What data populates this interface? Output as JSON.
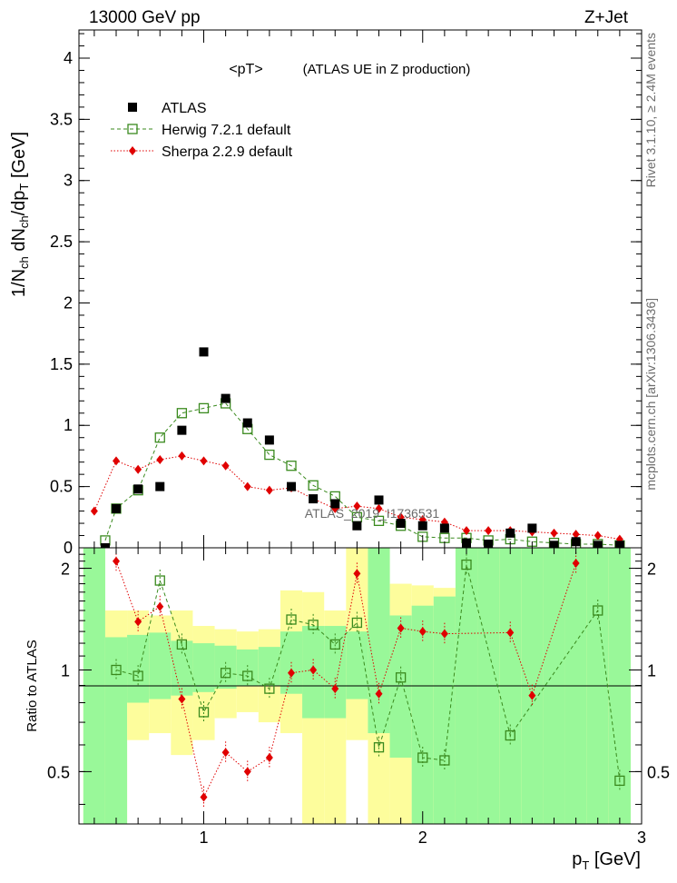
{
  "header": {
    "left": "13000 GeV pp",
    "right": "Z+Jet",
    "plot_title": "<pT>",
    "plot_subtitle": "(ATLAS UE in Z production)"
  },
  "side_labels": {
    "rivet": "Rivet 3.1.10, ≥ 2.4M events",
    "mcplots": "mcplots.cern.ch [arXiv:1306.3436]"
  },
  "watermark": "ATLAS_2019_I1736531",
  "colors": {
    "atlas": "#000000",
    "herwig": "#3a8a1e",
    "sherpa": "#e00000",
    "band_inner": "#99f899",
    "band_outer": "#fdfd9c"
  },
  "chart_data": [
    {
      "type": "scatter",
      "panel": "main",
      "xlim": [
        0.43,
        3.0
      ],
      "ylim": [
        0,
        4.23
      ],
      "ylabel": "1/N_ch dN_ch/dp_T [GeV]",
      "yticks": [
        0,
        0.5,
        1,
        1.5,
        2,
        2.5,
        3,
        3.5,
        4
      ],
      "grid": false,
      "legend_position": "top-left",
      "series": [
        {
          "name": "ATLAS",
          "style": "black filled squares",
          "x": [
            0.55,
            0.6,
            0.7,
            0.8,
            0.9,
            1.0,
            1.1,
            1.2,
            1.3,
            1.4,
            1.5,
            1.6,
            1.7,
            1.8,
            1.9,
            2.0,
            2.1,
            2.2,
            2.3,
            2.4,
            2.5,
            2.6,
            2.7,
            2.8,
            2.9
          ],
          "y": [
            0.0,
            0.32,
            0.48,
            0.5,
            0.96,
            1.6,
            1.22,
            1.02,
            0.88,
            0.5,
            0.4,
            0.36,
            0.18,
            0.39,
            0.2,
            0.18,
            0.16,
            0.04,
            0.03,
            0.12,
            0.16,
            0.02,
            0.05,
            0.02,
            0.02
          ]
        },
        {
          "name": "Herwig 7.2.1 default",
          "style": "green open squares, dashed",
          "x": [
            0.55,
            0.6,
            0.7,
            0.8,
            0.9,
            1.0,
            1.1,
            1.2,
            1.3,
            1.4,
            1.5,
            1.6,
            1.7,
            1.8,
            1.9,
            2.0,
            2.1,
            2.2,
            2.3,
            2.4,
            2.5,
            2.6,
            2.7,
            2.8,
            2.9
          ],
          "y": [
            0.06,
            0.32,
            0.47,
            0.9,
            1.1,
            1.14,
            1.18,
            0.97,
            0.76,
            0.67,
            0.51,
            0.42,
            0.25,
            0.22,
            0.18,
            0.09,
            0.08,
            0.08,
            0.06,
            0.07,
            0.05,
            0.04,
            0.03,
            0.03,
            0.02
          ]
        },
        {
          "name": "Sherpa 2.2.9 default",
          "style": "red diamonds, dotted",
          "x": [
            0.5,
            0.6,
            0.7,
            0.8,
            0.9,
            1.0,
            1.1,
            1.2,
            1.3,
            1.4,
            1.5,
            1.6,
            1.7,
            1.8,
            1.9,
            2.0,
            2.1,
            2.2,
            2.3,
            2.4,
            2.5,
            2.6,
            2.7,
            2.8,
            2.9
          ],
          "y": [
            0.3,
            0.71,
            0.64,
            0.72,
            0.75,
            0.71,
            0.67,
            0.5,
            0.47,
            0.49,
            0.4,
            0.32,
            0.34,
            0.32,
            0.25,
            0.23,
            0.21,
            0.14,
            0.14,
            0.14,
            0.13,
            0.12,
            0.11,
            0.1,
            0.07
          ]
        }
      ]
    },
    {
      "type": "scatter",
      "panel": "ratio",
      "xlim": [
        0.43,
        3.0
      ],
      "ylim": [
        0.35,
        2.3
      ],
      "xlabel": "p_T [GeV]",
      "ylabel": "Ratio to ATLAS",
      "xticks": [
        1,
        2,
        3
      ],
      "yticks": [
        0.5,
        1,
        2
      ],
      "reference_line": 1,
      "series": [
        {
          "name": "Herwig 7.2.1 default",
          "x": [
            0.6,
            0.7,
            0.8,
            0.9,
            1.0,
            1.1,
            1.2,
            1.3,
            1.4,
            1.5,
            1.6,
            1.7,
            1.8,
            1.9,
            2.0,
            2.1,
            2.2,
            2.4,
            2.8,
            2.9
          ],
          "y": [
            1.0,
            0.96,
            1.84,
            1.19,
            0.75,
            0.98,
            0.96,
            0.88,
            1.41,
            1.36,
            1.19,
            1.38,
            0.59,
            0.95,
            0.55,
            0.54,
            2.05,
            0.64,
            1.5,
            0.47
          ]
        },
        {
          "name": "Sherpa 2.2.9 default",
          "x": [
            0.6,
            0.7,
            0.8,
            0.9,
            1.0,
            1.1,
            1.2,
            1.3,
            1.4,
            1.5,
            1.6,
            1.7,
            1.8,
            1.9,
            2.0,
            2.1,
            2.4,
            2.5,
            2.7
          ],
          "y": [
            2.1,
            1.39,
            1.54,
            0.82,
            0.42,
            0.57,
            0.5,
            0.55,
            0.98,
            1.0,
            0.88,
            1.93,
            0.85,
            1.33,
            1.3,
            1.28,
            1.29,
            0.84,
            2.07
          ]
        }
      ],
      "uncertainty_bands": {
        "bins": [
          0.45,
          0.55,
          0.65,
          0.75,
          0.85,
          0.95,
          1.05,
          1.15,
          1.25,
          1.35,
          1.45,
          1.55,
          1.65,
          1.75,
          1.85,
          1.95,
          2.05,
          2.15,
          2.25,
          2.35,
          2.45,
          2.55,
          2.65,
          2.75,
          2.85,
          2.95
        ],
        "inner_low": [
          0.35,
          0.35,
          0.8,
          0.82,
          0.84,
          0.86,
          0.88,
          0.9,
          0.9,
          0.85,
          0.72,
          0.72,
          0.82,
          0.65,
          0.55,
          0.35,
          0.35,
          0.35,
          0.35,
          0.35,
          0.35,
          0.35,
          0.35,
          0.35,
          0.35
        ],
        "inner_high": [
          2.3,
          1.25,
          1.27,
          1.29,
          1.22,
          1.2,
          1.18,
          1.15,
          1.17,
          1.3,
          1.35,
          1.35,
          1.3,
          2.3,
          1.45,
          1.55,
          1.65,
          2.3,
          2.3,
          2.3,
          2.3,
          2.3,
          2.3,
          2.3,
          2.3
        ],
        "outer_low": [
          0.35,
          0.35,
          0.62,
          0.65,
          0.56,
          0.62,
          0.72,
          0.75,
          0.7,
          0.65,
          0.35,
          0.35,
          0.62,
          0.35,
          0.35,
          0.35,
          0.35,
          0.35,
          0.35,
          0.35,
          0.35,
          0.35,
          0.35,
          0.35,
          0.35
        ],
        "outer_high": [
          2.3,
          1.5,
          1.5,
          1.45,
          1.5,
          1.35,
          1.32,
          1.3,
          1.32,
          1.72,
          1.7,
          1.5,
          2.3,
          2.3,
          1.8,
          1.78,
          1.75,
          2.3,
          2.3,
          2.3,
          2.3,
          2.3,
          2.3,
          2.3,
          2.3
        ]
      }
    }
  ]
}
